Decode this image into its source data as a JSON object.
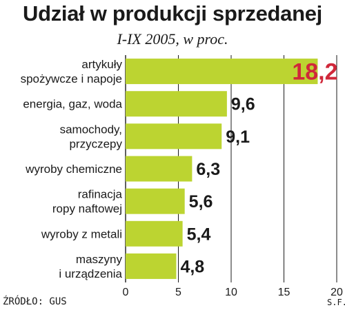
{
  "title": "Udział w produkcji sprzedanej",
  "subtitle": "I-IX 2005, w proc.",
  "source": "ŹRÓDŁO: GUS",
  "credit": "S.F.",
  "colors": {
    "bar": "#bcd431",
    "highlight_label": "#d0283a",
    "value_label": "#1a1a1a",
    "axis": "#1a1a1a"
  },
  "chart_data": {
    "type": "bar",
    "orientation": "horizontal",
    "categories": [
      [
        "artykuły",
        "spożywcze i napoje"
      ],
      [
        "energia, gaz, woda"
      ],
      [
        "samochody,",
        "przyczepy"
      ],
      [
        "wyroby chemiczne"
      ],
      [
        "rafinacja",
        "ropy naftowej"
      ],
      [
        "wyroby z metali"
      ],
      [
        "maszyny",
        "i urządzenia"
      ]
    ],
    "values": [
      18.2,
      9.6,
      9.1,
      6.3,
      5.6,
      5.4,
      4.8
    ],
    "value_labels": [
      "18,2",
      "9,6",
      "9,1",
      "6,3",
      "5,6",
      "5,4",
      "4,8"
    ],
    "highlight_index": 0,
    "xlim": [
      0,
      20
    ],
    "x_ticks": [
      0,
      5,
      10,
      15,
      20
    ],
    "grid": true,
    "title": "Udział w produkcji sprzedanej",
    "subtitle": "I-IX 2005, w proc.",
    "xlabel": "",
    "ylabel": ""
  }
}
